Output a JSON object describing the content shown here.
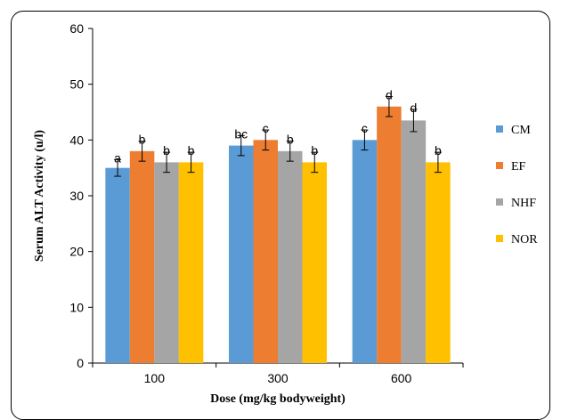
{
  "chart_data": {
    "type": "bar",
    "title": "",
    "xlabel": "Dose (mg/kg bodyweight)",
    "ylabel": "Serum ALT Activity (u/l)",
    "categories": [
      "100",
      "300",
      "600"
    ],
    "ylim": [
      0,
      60
    ],
    "yticks": [
      0,
      10,
      20,
      30,
      40,
      50,
      60
    ],
    "grid": false,
    "legend_position": "right",
    "series": [
      {
        "name": "CM",
        "color": "#5b9bd5",
        "values": [
          35,
          39,
          40
        ],
        "errors": [
          1.5,
          1.8,
          1.8
        ],
        "labels": [
          "a",
          "bc",
          "c"
        ]
      },
      {
        "name": "EF",
        "color": "#ed7d31",
        "values": [
          38,
          40,
          46
        ],
        "errors": [
          1.8,
          1.8,
          1.8
        ],
        "labels": [
          "b",
          "c",
          "d"
        ]
      },
      {
        "name": "NHF",
        "color": "#a5a5a5",
        "values": [
          36,
          38,
          43.5
        ],
        "errors": [
          1.8,
          1.8,
          2.0
        ],
        "labels": [
          "b",
          "b",
          "d"
        ]
      },
      {
        "name": "NOR",
        "color": "#ffc000",
        "values": [
          36,
          36,
          36
        ],
        "errors": [
          1.8,
          1.8,
          1.8
        ],
        "labels": [
          "b",
          "b",
          "b"
        ]
      }
    ]
  }
}
